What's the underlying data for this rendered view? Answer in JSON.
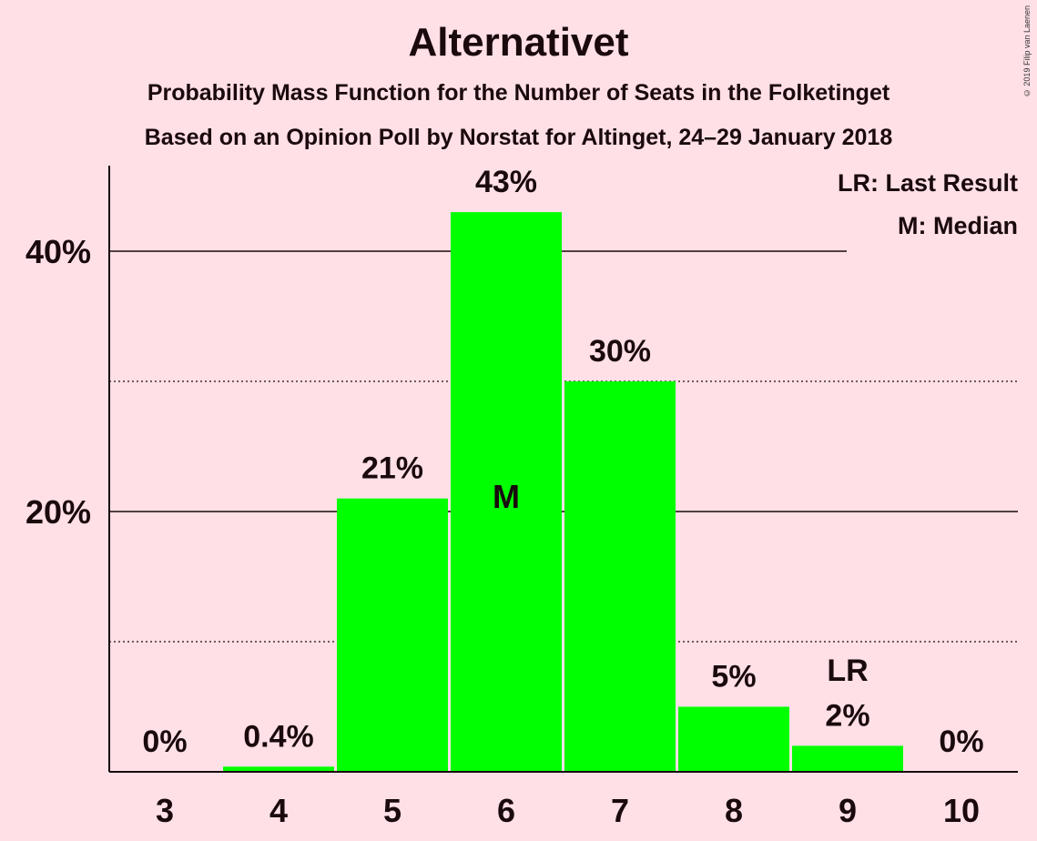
{
  "chart_data": {
    "type": "bar",
    "title": "Alternativet",
    "subtitle": "Probability Mass Function for the Number of Seats in the Folketinget",
    "subtitle2": "Based on an Opinion Poll by Norstat for Altinget, 24–29 January 2018",
    "copyright": "© 2019 Filip van Laenen",
    "categories": [
      "3",
      "4",
      "5",
      "6",
      "7",
      "8",
      "9",
      "10"
    ],
    "values": [
      0,
      0.4,
      21,
      43,
      30,
      5,
      2,
      0
    ],
    "value_labels": [
      "0%",
      "0.4%",
      "21%",
      "43%",
      "30%",
      "5%",
      "2%",
      "0%"
    ],
    "ylim": [
      0,
      45
    ],
    "yticks": [
      {
        "value": 20,
        "label": "20%"
      },
      {
        "value": 40,
        "label": "40%"
      }
    ],
    "minor_gridlines": [
      10,
      30
    ],
    "median": {
      "category": "6",
      "label": "M"
    },
    "last_result": {
      "category": "9",
      "label": "LR"
    },
    "legend": [
      "LR: Last Result",
      "M: Median"
    ],
    "legend_position": "top-right",
    "bar_color": "#00ff00",
    "background_color": "#ffe0e6"
  }
}
